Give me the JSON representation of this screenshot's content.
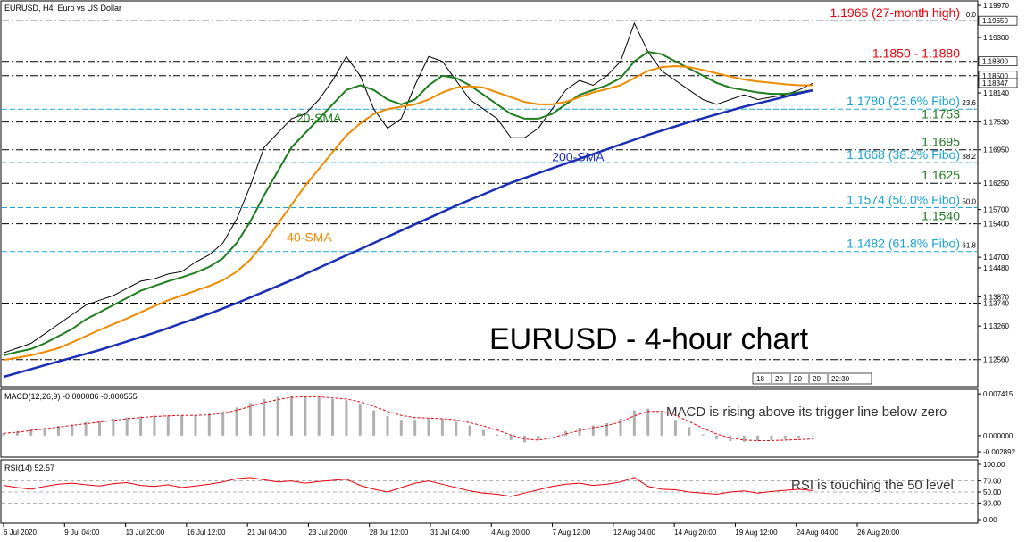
{
  "chart_data": {
    "type": "line",
    "window_title": "EURUSD, H4:  Euro vs US Dollar",
    "title": "EURUSD - 4-hour chart",
    "instrument": "EURUSD",
    "timeframe": "H4",
    "price_axis": {
      "ylim": [
        1.1205,
        1.1999
      ],
      "ticks": [
        "1.19970",
        "1.19300",
        "1.18140",
        "1.17530",
        "1.16950",
        "1.16250",
        "1.15700",
        "1.15400",
        "1.14700",
        "1.14480",
        "1.13870",
        "1.13740",
        "1.13260",
        "1.12560"
      ],
      "price_tags": [
        {
          "value": "1.19650",
          "y": 1.1965
        },
        {
          "value": "1.18800",
          "y": 1.188
        },
        {
          "value": "1.18500",
          "y": 1.185
        },
        {
          "value": "1.18347",
          "y": 1.18347
        }
      ]
    },
    "x_tick_labels": [
      "6 Jul 2020",
      "9 Jul 04:00",
      "13 Jul 20:00",
      "16 Jul 12:00",
      "21 Jul 04:00",
      "23 Jul 20:00",
      "28 Jul 12:00",
      "31 Jul 04:00",
      "4 Aug 20:00",
      "7 Aug 12:00",
      "12 Aug 04:00",
      "14 Aug 20:00",
      "19 Aug 12:00",
      "24 Aug 04:00",
      "26 Aug 20:00"
    ],
    "levels": [
      {
        "value": 1.1965,
        "label": "1.1965 (27-month high)",
        "color": "#e8000b",
        "kind": "resistance",
        "style": "dash-dot",
        "fibo": "0.0"
      },
      {
        "value": 1.188,
        "label": "1.1850 - 1.1880",
        "color": "#e8000b",
        "kind": "resistance",
        "style": "dash-dot"
      },
      {
        "value": 1.185,
        "label": "",
        "color": "#000000",
        "kind": "resistance",
        "style": "dash-dot"
      },
      {
        "value": 1.178,
        "label": "1.1780 (23.6% Fibo)",
        "color": "#1aa3d6",
        "kind": "fibo",
        "style": "dashed",
        "fibo": "23.6"
      },
      {
        "value": 1.1753,
        "label": "1.1753",
        "color": "#1e7d1e",
        "kind": "support",
        "style": "dash-dot"
      },
      {
        "value": 1.1695,
        "label": "1.1695",
        "color": "#1e7d1e",
        "kind": "support",
        "style": "dash-dot"
      },
      {
        "value": 1.1668,
        "label": "1.1668 (38.2% Fibo)",
        "color": "#1aa3d6",
        "kind": "fibo",
        "style": "dashed",
        "fibo": "38.2"
      },
      {
        "value": 1.1625,
        "label": "1.1625",
        "color": "#1e7d1e",
        "kind": "support",
        "style": "dash-dot"
      },
      {
        "value": 1.1574,
        "label": "1.1574 (50.0% Fibo)",
        "color": "#1aa3d6",
        "kind": "fibo",
        "style": "dashed",
        "fibo": "50.0"
      },
      {
        "value": 1.154,
        "label": "1.1540",
        "color": "#1e7d1e",
        "kind": "support",
        "style": "dash-dot"
      },
      {
        "value": 1.1482,
        "label": "1.1482 (61.8% Fibo)",
        "color": "#1aa3d6",
        "kind": "fibo",
        "style": "dashed",
        "fibo": "61.8"
      },
      {
        "value": 1.1374,
        "label": "",
        "color": "#000000",
        "kind": "support",
        "style": "dash-dot"
      },
      {
        "value": 1.1256,
        "label": "",
        "color": "#000000",
        "kind": "support",
        "style": "dash-dot"
      }
    ],
    "sma_labels": [
      {
        "label": "20-SMA",
        "color": "#1e7d1e"
      },
      {
        "label": "40-SMA",
        "color": "#f08a00"
      },
      {
        "label": "200-SMA",
        "color": "#1a2fb5"
      }
    ],
    "period_separators": [
      "18",
      "20",
      "20",
      "20",
      "22:30"
    ],
    "series": [
      {
        "name": "Close",
        "color": "#000000",
        "values": [
          1.127,
          1.128,
          1.129,
          1.131,
          1.133,
          1.135,
          1.137,
          1.138,
          1.139,
          1.1405,
          1.142,
          1.1425,
          1.1435,
          1.144,
          1.146,
          1.1475,
          1.15,
          1.155,
          1.162,
          1.17,
          1.173,
          1.176,
          1.177,
          1.18,
          1.184,
          1.189,
          1.185,
          1.178,
          1.174,
          1.176,
          1.183,
          1.189,
          1.188,
          1.184,
          1.18,
          1.178,
          1.176,
          1.172,
          1.172,
          1.174,
          1.178,
          1.182,
          1.184,
          1.183,
          1.185,
          1.188,
          1.196,
          1.19,
          1.186,
          1.184,
          1.182,
          1.18,
          1.179,
          1.18,
          1.181,
          1.18,
          1.1805,
          1.181,
          1.182,
          1.1834
        ]
      },
      {
        "name": "20-SMA",
        "color": "#1e7d1e",
        "values": [
          1.1265,
          1.1272,
          1.1278,
          1.129,
          1.1305,
          1.132,
          1.134,
          1.1355,
          1.137,
          1.1385,
          1.14,
          1.141,
          1.142,
          1.1428,
          1.1438,
          1.145,
          1.1468,
          1.15,
          1.1545,
          1.16,
          1.165,
          1.17,
          1.173,
          1.176,
          1.179,
          1.182,
          1.183,
          1.182,
          1.18,
          1.179,
          1.18,
          1.183,
          1.185,
          1.1845,
          1.183,
          1.181,
          1.179,
          1.177,
          1.176,
          1.176,
          1.177,
          1.179,
          1.181,
          1.182,
          1.183,
          1.1845,
          1.188,
          1.19,
          1.1895,
          1.188,
          1.1865,
          1.185,
          1.1835,
          1.1825,
          1.182,
          1.1815,
          1.1812,
          1.1812,
          1.1815,
          1.182
        ]
      },
      {
        "name": "40-SMA",
        "color": "#f08a00",
        "values": [
          1.1255,
          1.126,
          1.1265,
          1.1272,
          1.128,
          1.1292,
          1.1305,
          1.1318,
          1.133,
          1.1342,
          1.1355,
          1.1368,
          1.138,
          1.139,
          1.14,
          1.141,
          1.1422,
          1.144,
          1.1465,
          1.15,
          1.154,
          1.158,
          1.162,
          1.1655,
          1.169,
          1.1725,
          1.175,
          1.177,
          1.178,
          1.1785,
          1.179,
          1.18,
          1.1815,
          1.1825,
          1.1828,
          1.1825,
          1.1815,
          1.1805,
          1.1795,
          1.179,
          1.179,
          1.1795,
          1.1805,
          1.1815,
          1.1822,
          1.183,
          1.1845,
          1.186,
          1.1868,
          1.187,
          1.1868,
          1.1862,
          1.1855,
          1.1848,
          1.1842,
          1.1838,
          1.1835,
          1.1832,
          1.183,
          1.183
        ]
      },
      {
        "name": "200-SMA",
        "color": "#1a2fb5",
        "values": [
          1.122,
          1.1228,
          1.1236,
          1.1244,
          1.1252,
          1.126,
          1.1268,
          1.1276,
          1.1285,
          1.1294,
          1.1303,
          1.1312,
          1.1322,
          1.1332,
          1.1342,
          1.1352,
          1.1363,
          1.1374,
          1.1386,
          1.1398,
          1.141,
          1.1422,
          1.1435,
          1.1448,
          1.1461,
          1.1474,
          1.1487,
          1.15,
          1.1513,
          1.1526,
          1.1539,
          1.1552,
          1.1565,
          1.1578,
          1.159,
          1.1602,
          1.1614,
          1.1626,
          1.1636,
          1.1646,
          1.1656,
          1.1666,
          1.1676,
          1.1686,
          1.1696,
          1.1706,
          1.1716,
          1.1726,
          1.1735,
          1.1744,
          1.1753,
          1.1761,
          1.1769,
          1.1777,
          1.1785,
          1.1792,
          1.1799,
          1.1806,
          1.1813,
          1.1819
        ]
      }
    ],
    "macd": {
      "header": "MACD(12,26,9) -0.000086 -0.000555",
      "params": [
        12,
        26,
        9
      ],
      "main_value": -8.6e-05,
      "signal_value": -0.000555,
      "ylim": [
        -0.0032,
        0.0076
      ],
      "ticks": [
        "0.007415",
        "0.000000",
        "-0.002892"
      ],
      "annotation": "MACD is rising above its trigger line below zero",
      "histogram": [
        0.0005,
        0.0008,
        0.0011,
        0.0014,
        0.0017,
        0.002,
        0.0024,
        0.0027,
        0.003,
        0.0032,
        0.0034,
        0.0035,
        0.0036,
        0.0036,
        0.0037,
        0.0039,
        0.0043,
        0.005,
        0.0058,
        0.0065,
        0.0069,
        0.0071,
        0.007,
        0.0068,
        0.0065,
        0.0063,
        0.0055,
        0.0045,
        0.0035,
        0.0028,
        0.0028,
        0.003,
        0.003,
        0.0025,
        0.0018,
        0.001,
        0.0002,
        -0.0008,
        -0.0012,
        -0.0008,
        0.0,
        0.0008,
        0.0014,
        0.0018,
        0.0022,
        0.003,
        0.0045,
        0.0048,
        0.004,
        0.0028,
        0.0015,
        0.0002,
        -0.0006,
        -0.001,
        -0.0011,
        -0.001,
        -0.0008,
        -0.0006,
        -0.0004,
        -0.0001
      ],
      "signal": [
        0.0004,
        0.0006,
        0.0009,
        0.0012,
        0.0015,
        0.0018,
        0.0021,
        0.0024,
        0.0027,
        0.003,
        0.0032,
        0.0034,
        0.0035,
        0.0036,
        0.0036,
        0.0037,
        0.004,
        0.0045,
        0.0052,
        0.0059,
        0.0064,
        0.0068,
        0.0069,
        0.0069,
        0.0067,
        0.0065,
        0.006,
        0.0052,
        0.0043,
        0.0036,
        0.0032,
        0.0031,
        0.003,
        0.0028,
        0.0023,
        0.0017,
        0.001,
        0.0001,
        -0.0006,
        -0.0008,
        -0.0004,
        0.0003,
        0.0009,
        0.0014,
        0.0018,
        0.0024,
        0.0035,
        0.0043,
        0.0043,
        0.0036,
        0.0025,
        0.0013,
        0.0003,
        -0.0004,
        -0.0008,
        -0.0009,
        -0.0009,
        -0.0008,
        -0.0007,
        -0.0006
      ]
    },
    "rsi": {
      "header": "RSI(14) 52.57",
      "period": 14,
      "value": 52.57,
      "ylim": [
        0,
        100
      ],
      "ticks": [
        "100.00",
        "70.00",
        "50.00",
        "30.00",
        "0.00"
      ],
      "levels": [
        70,
        50,
        30
      ],
      "annotation": "RSI is touching the 50 level",
      "values": [
        62,
        58,
        55,
        60,
        64,
        66,
        63,
        61,
        65,
        67,
        62,
        60,
        63,
        58,
        61,
        64,
        68,
        74,
        76,
        72,
        68,
        70,
        66,
        69,
        71,
        73,
        62,
        55,
        50,
        58,
        66,
        70,
        64,
        58,
        52,
        48,
        46,
        42,
        48,
        54,
        60,
        64,
        66,
        62,
        64,
        68,
        76,
        60,
        55,
        54,
        50,
        48,
        46,
        50,
        52,
        48,
        51,
        53,
        55,
        52.57
      ]
    }
  }
}
